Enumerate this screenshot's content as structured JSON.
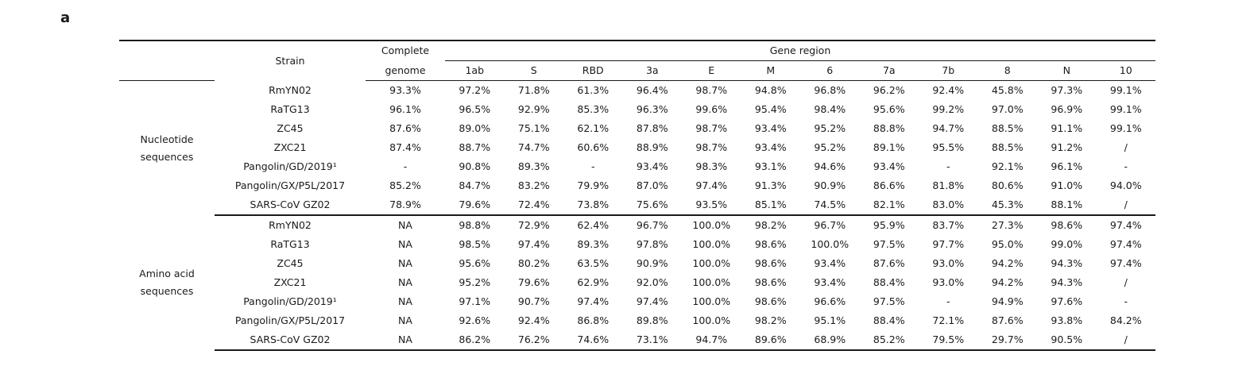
{
  "panel_label": "a",
  "header": {
    "strain": "Strain",
    "complete_line1": "Complete",
    "complete_line2": "genome",
    "gene_region": "Gene region",
    "genes": [
      "1ab",
      "S",
      "RBD",
      "3a",
      "E",
      "M",
      "6",
      "7a",
      "7b",
      "8",
      "N",
      "10"
    ]
  },
  "groups": [
    {
      "label_line1": "Nucleotide",
      "label_line2": "sequences",
      "rows": [
        {
          "strain": "RmYN02",
          "complete": "93.3%",
          "values": [
            "97.2%",
            "71.8%",
            "61.3%",
            "96.4%",
            "98.7%",
            "94.8%",
            "96.8%",
            "96.2%",
            "92.4%",
            "45.8%",
            "97.3%",
            "99.1%"
          ]
        },
        {
          "strain": "RaTG13",
          "complete": "96.1%",
          "values": [
            "96.5%",
            "92.9%",
            "85.3%",
            "96.3%",
            "99.6%",
            "95.4%",
            "98.4%",
            "95.6%",
            "99.2%",
            "97.0%",
            "96.9%",
            "99.1%"
          ]
        },
        {
          "strain": "ZC45",
          "complete": "87.6%",
          "values": [
            "89.0%",
            "75.1%",
            "62.1%",
            "87.8%",
            "98.7%",
            "93.4%",
            "95.2%",
            "88.8%",
            "94.7%",
            "88.5%",
            "91.1%",
            "99.1%"
          ]
        },
        {
          "strain": "ZXC21",
          "complete": "87.4%",
          "values": [
            "88.7%",
            "74.7%",
            "60.6%",
            "88.9%",
            "98.7%",
            "93.4%",
            "95.2%",
            "89.1%",
            "95.5%",
            "88.5%",
            "91.2%",
            "/"
          ]
        },
        {
          "strain": "Pangolin/GD/2019¹",
          "complete": "-",
          "values": [
            "90.8%",
            "89.3%",
            "-",
            "93.4%",
            "98.3%",
            "93.1%",
            "94.6%",
            "93.4%",
            "-",
            "92.1%",
            "96.1%",
            "-"
          ]
        },
        {
          "strain": "Pangolin/GX/P5L/2017",
          "complete": "85.2%",
          "values": [
            "84.7%",
            "83.2%",
            "79.9%",
            "87.0%",
            "97.4%",
            "91.3%",
            "90.9%",
            "86.6%",
            "81.8%",
            "80.6%",
            "91.0%",
            "94.0%"
          ]
        },
        {
          "strain": "SARS-CoV GZ02",
          "complete": "78.9%",
          "values": [
            "79.6%",
            "72.4%",
            "73.8%",
            "75.6%",
            "93.5%",
            "85.1%",
            "74.5%",
            "82.1%",
            "83.0%",
            "45.3%",
            "88.1%",
            "/"
          ]
        }
      ]
    },
    {
      "label_line1": "Amino acid",
      "label_line2": "sequences",
      "rows": [
        {
          "strain": "RmYN02",
          "complete": "NA",
          "values": [
            "98.8%",
            "72.9%",
            "62.4%",
            "96.7%",
            "100.0%",
            "98.2%",
            "96.7%",
            "95.9%",
            "83.7%",
            "27.3%",
            "98.6%",
            "97.4%"
          ]
        },
        {
          "strain": "RaTG13",
          "complete": "NA",
          "values": [
            "98.5%",
            "97.4%",
            "89.3%",
            "97.8%",
            "100.0%",
            "98.6%",
            "100.0%",
            "97.5%",
            "97.7%",
            "95.0%",
            "99.0%",
            "97.4%"
          ]
        },
        {
          "strain": "ZC45",
          "complete": "NA",
          "values": [
            "95.6%",
            "80.2%",
            "63.5%",
            "90.9%",
            "100.0%",
            "98.6%",
            "93.4%",
            "87.6%",
            "93.0%",
            "94.2%",
            "94.3%",
            "97.4%"
          ]
        },
        {
          "strain": "ZXC21",
          "complete": "NA",
          "values": [
            "95.2%",
            "79.6%",
            "62.9%",
            "92.0%",
            "100.0%",
            "98.6%",
            "93.4%",
            "88.4%",
            "93.0%",
            "94.2%",
            "94.3%",
            "/"
          ]
        },
        {
          "strain": "Pangolin/GD/2019¹",
          "complete": "NA",
          "values": [
            "97.1%",
            "90.7%",
            "97.4%",
            "97.4%",
            "100.0%",
            "98.6%",
            "96.6%",
            "97.5%",
            "-",
            "94.9%",
            "97.6%",
            "-"
          ]
        },
        {
          "strain": "Pangolin/GX/P5L/2017",
          "complete": "NA",
          "values": [
            "92.6%",
            "92.4%",
            "86.8%",
            "89.8%",
            "100.0%",
            "98.2%",
            "95.1%",
            "88.4%",
            "72.1%",
            "87.6%",
            "93.8%",
            "84.2%"
          ]
        },
        {
          "strain": "SARS-CoV GZ02",
          "complete": "NA",
          "values": [
            "86.2%",
            "76.2%",
            "74.6%",
            "73.1%",
            "94.7%",
            "89.6%",
            "68.9%",
            "85.2%",
            "79.5%",
            "29.7%",
            "90.5%",
            "/"
          ]
        }
      ]
    }
  ]
}
